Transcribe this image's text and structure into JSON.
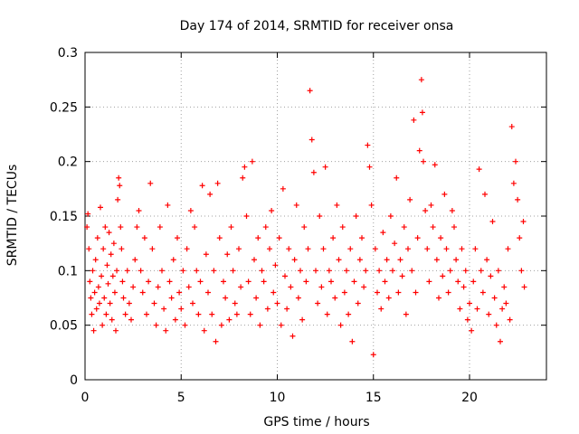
{
  "chart_data": {
    "type": "scatter",
    "title": "Day 174 of 2014, SRMTID for receiver onsa",
    "xlabel": "GPS time / hours",
    "ylabel": "SRMTID / TECUs",
    "xlim": [
      0,
      24
    ],
    "ylim": [
      0,
      0.3
    ],
    "x_ticks": [
      0,
      5,
      10,
      15,
      20
    ],
    "y_ticks": [
      0,
      0.05,
      0.1,
      0.15,
      0.2,
      0.25,
      0.3
    ],
    "x_tick_labels": [
      "0",
      "5",
      "10",
      "15",
      "20"
    ],
    "y_tick_labels": [
      "0",
      "0.05",
      "0.1",
      "0.15",
      "0.2",
      "0.25",
      "0.3"
    ],
    "grid": true,
    "marker": "+",
    "series": [
      {
        "name": "SRMTID",
        "color": "#ff0000",
        "points": [
          [
            0.1,
            0.14
          ],
          [
            0.15,
            0.152
          ],
          [
            0.2,
            0.12
          ],
          [
            0.25,
            0.09
          ],
          [
            0.3,
            0.075
          ],
          [
            0.35,
            0.06
          ],
          [
            0.4,
            0.1
          ],
          [
            0.45,
            0.045
          ],
          [
            0.5,
            0.08
          ],
          [
            0.55,
            0.11
          ],
          [
            0.6,
            0.065
          ],
          [
            0.65,
            0.13
          ],
          [
            0.7,
            0.085
          ],
          [
            0.75,
            0.07
          ],
          [
            0.8,
            0.158
          ],
          [
            0.85,
            0.095
          ],
          [
            0.9,
            0.05
          ],
          [
            0.95,
            0.12
          ],
          [
            1.0,
            0.075
          ],
          [
            1.05,
            0.14
          ],
          [
            1.1,
            0.06
          ],
          [
            1.15,
            0.105
          ],
          [
            1.2,
            0.088
          ],
          [
            1.25,
            0.135
          ],
          [
            1.3,
            0.07
          ],
          [
            1.35,
            0.115
          ],
          [
            1.4,
            0.055
          ],
          [
            1.45,
            0.095
          ],
          [
            1.5,
            0.125
          ],
          [
            1.55,
            0.08
          ],
          [
            1.6,
            0.045
          ],
          [
            1.65,
            0.1
          ],
          [
            1.7,
            0.165
          ],
          [
            1.75,
            0.185
          ],
          [
            1.8,
            0.178
          ],
          [
            1.85,
            0.14
          ],
          [
            1.9,
            0.12
          ],
          [
            1.95,
            0.09
          ],
          [
            2.0,
            0.075
          ],
          [
            2.1,
            0.06
          ],
          [
            2.2,
            0.1
          ],
          [
            2.3,
            0.07
          ],
          [
            2.4,
            0.055
          ],
          [
            2.5,
            0.085
          ],
          [
            2.6,
            0.11
          ],
          [
            2.7,
            0.14
          ],
          [
            2.8,
            0.155
          ],
          [
            2.9,
            0.1
          ],
          [
            3.0,
            0.08
          ],
          [
            3.1,
            0.13
          ],
          [
            3.2,
            0.06
          ],
          [
            3.3,
            0.09
          ],
          [
            3.4,
            0.18
          ],
          [
            3.5,
            0.12
          ],
          [
            3.6,
            0.07
          ],
          [
            3.7,
            0.05
          ],
          [
            3.8,
            0.085
          ],
          [
            3.9,
            0.14
          ],
          [
            4.0,
            0.1
          ],
          [
            4.1,
            0.065
          ],
          [
            4.2,
            0.045
          ],
          [
            4.3,
            0.16
          ],
          [
            4.4,
            0.09
          ],
          [
            4.5,
            0.075
          ],
          [
            4.6,
            0.11
          ],
          [
            4.7,
            0.055
          ],
          [
            4.8,
            0.13
          ],
          [
            4.9,
            0.08
          ],
          [
            5.0,
            0.065
          ],
          [
            5.1,
            0.1
          ],
          [
            5.2,
            0.05
          ],
          [
            5.3,
            0.12
          ],
          [
            5.4,
            0.085
          ],
          [
            5.5,
            0.155
          ],
          [
            5.6,
            0.07
          ],
          [
            5.7,
            0.14
          ],
          [
            5.8,
            0.1
          ],
          [
            5.9,
            0.06
          ],
          [
            6.0,
            0.09
          ],
          [
            6.1,
            0.178
          ],
          [
            6.2,
            0.045
          ],
          [
            6.3,
            0.115
          ],
          [
            6.4,
            0.08
          ],
          [
            6.5,
            0.17
          ],
          [
            6.6,
            0.06
          ],
          [
            6.7,
            0.1
          ],
          [
            6.8,
            0.035
          ],
          [
            6.9,
            0.18
          ],
          [
            7.0,
            0.13
          ],
          [
            7.1,
            0.05
          ],
          [
            7.2,
            0.09
          ],
          [
            7.3,
            0.075
          ],
          [
            7.4,
            0.115
          ],
          [
            7.5,
            0.055
          ],
          [
            7.6,
            0.14
          ],
          [
            7.7,
            0.1
          ],
          [
            7.8,
            0.07
          ],
          [
            7.9,
            0.06
          ],
          [
            8.0,
            0.12
          ],
          [
            8.1,
            0.085
          ],
          [
            8.2,
            0.185
          ],
          [
            8.3,
            0.195
          ],
          [
            8.4,
            0.15
          ],
          [
            8.5,
            0.09
          ],
          [
            8.6,
            0.06
          ],
          [
            8.7,
            0.2
          ],
          [
            8.8,
            0.11
          ],
          [
            8.9,
            0.075
          ],
          [
            9.0,
            0.13
          ],
          [
            9.1,
            0.05
          ],
          [
            9.2,
            0.1
          ],
          [
            9.3,
            0.09
          ],
          [
            9.4,
            0.14
          ],
          [
            9.5,
            0.065
          ],
          [
            9.6,
            0.12
          ],
          [
            9.7,
            0.155
          ],
          [
            9.8,
            0.08
          ],
          [
            9.9,
            0.105
          ],
          [
            10.0,
            0.07
          ],
          [
            10.1,
            0.13
          ],
          [
            10.2,
            0.05
          ],
          [
            10.3,
            0.175
          ],
          [
            10.4,
            0.095
          ],
          [
            10.5,
            0.065
          ],
          [
            10.6,
            0.12
          ],
          [
            10.7,
            0.085
          ],
          [
            10.8,
            0.04
          ],
          [
            10.9,
            0.11
          ],
          [
            11.0,
            0.16
          ],
          [
            11.1,
            0.075
          ],
          [
            11.2,
            0.1
          ],
          [
            11.3,
            0.055
          ],
          [
            11.4,
            0.14
          ],
          [
            11.5,
            0.09
          ],
          [
            11.6,
            0.12
          ],
          [
            11.7,
            0.265
          ],
          [
            11.8,
            0.22
          ],
          [
            11.9,
            0.19
          ],
          [
            12.0,
            0.1
          ],
          [
            12.1,
            0.07
          ],
          [
            12.2,
            0.15
          ],
          [
            12.3,
            0.085
          ],
          [
            12.4,
            0.12
          ],
          [
            12.5,
            0.195
          ],
          [
            12.6,
            0.06
          ],
          [
            12.7,
            0.1
          ],
          [
            12.8,
            0.09
          ],
          [
            12.9,
            0.13
          ],
          [
            13.0,
            0.075
          ],
          [
            13.1,
            0.16
          ],
          [
            13.2,
            0.11
          ],
          [
            13.3,
            0.05
          ],
          [
            13.4,
            0.14
          ],
          [
            13.5,
            0.08
          ],
          [
            13.6,
            0.1
          ],
          [
            13.7,
            0.06
          ],
          [
            13.8,
            0.12
          ],
          [
            13.9,
            0.035
          ],
          [
            14.0,
            0.09
          ],
          [
            14.1,
            0.15
          ],
          [
            14.2,
            0.07
          ],
          [
            14.3,
            0.11
          ],
          [
            14.4,
            0.13
          ],
          [
            14.5,
            0.085
          ],
          [
            14.6,
            0.1
          ],
          [
            14.7,
            0.215
          ],
          [
            14.8,
            0.195
          ],
          [
            14.9,
            0.16
          ],
          [
            15.0,
            0.023
          ],
          [
            15.1,
            0.12
          ],
          [
            15.2,
            0.08
          ],
          [
            15.3,
            0.1
          ],
          [
            15.4,
            0.065
          ],
          [
            15.5,
            0.135
          ],
          [
            15.6,
            0.09
          ],
          [
            15.7,
            0.11
          ],
          [
            15.8,
            0.075
          ],
          [
            15.9,
            0.15
          ],
          [
            16.0,
            0.1
          ],
          [
            16.1,
            0.125
          ],
          [
            16.2,
            0.185
          ],
          [
            16.3,
            0.08
          ],
          [
            16.4,
            0.11
          ],
          [
            16.5,
            0.095
          ],
          [
            16.6,
            0.14
          ],
          [
            16.7,
            0.06
          ],
          [
            16.8,
            0.12
          ],
          [
            16.9,
            0.165
          ],
          [
            17.0,
            0.1
          ],
          [
            17.1,
            0.238
          ],
          [
            17.2,
            0.08
          ],
          [
            17.3,
            0.13
          ],
          [
            17.4,
            0.21
          ],
          [
            17.5,
            0.275
          ],
          [
            17.55,
            0.245
          ],
          [
            17.6,
            0.2
          ],
          [
            17.7,
            0.155
          ],
          [
            17.8,
            0.12
          ],
          [
            17.9,
            0.09
          ],
          [
            18.0,
            0.16
          ],
          [
            18.1,
            0.14
          ],
          [
            18.2,
            0.197
          ],
          [
            18.3,
            0.11
          ],
          [
            18.4,
            0.075
          ],
          [
            18.5,
            0.13
          ],
          [
            18.6,
            0.095
          ],
          [
            18.7,
            0.17
          ],
          [
            18.8,
            0.12
          ],
          [
            18.9,
            0.08
          ],
          [
            19.0,
            0.1
          ],
          [
            19.1,
            0.155
          ],
          [
            19.2,
            0.14
          ],
          [
            19.3,
            0.11
          ],
          [
            19.4,
            0.09
          ],
          [
            19.5,
            0.065
          ],
          [
            19.6,
            0.12
          ],
          [
            19.7,
            0.085
          ],
          [
            19.8,
            0.1
          ],
          [
            19.9,
            0.055
          ],
          [
            20.0,
            0.07
          ],
          [
            20.1,
            0.045
          ],
          [
            20.2,
            0.09
          ],
          [
            20.3,
            0.12
          ],
          [
            20.4,
            0.065
          ],
          [
            20.5,
            0.193
          ],
          [
            20.6,
            0.1
          ],
          [
            20.7,
            0.08
          ],
          [
            20.8,
            0.17
          ],
          [
            20.9,
            0.11
          ],
          [
            21.0,
            0.06
          ],
          [
            21.1,
            0.095
          ],
          [
            21.2,
            0.145
          ],
          [
            21.3,
            0.075
          ],
          [
            21.4,
            0.05
          ],
          [
            21.5,
            0.1
          ],
          [
            21.6,
            0.035
          ],
          [
            21.7,
            0.065
          ],
          [
            21.8,
            0.085
          ],
          [
            21.9,
            0.07
          ],
          [
            22.0,
            0.12
          ],
          [
            22.1,
            0.055
          ],
          [
            22.2,
            0.232
          ],
          [
            22.3,
            0.18
          ],
          [
            22.4,
            0.2
          ],
          [
            22.5,
            0.165
          ],
          [
            22.6,
            0.13
          ],
          [
            22.7,
            0.1
          ],
          [
            22.8,
            0.145
          ],
          [
            22.85,
            0.085
          ]
        ]
      }
    ]
  }
}
